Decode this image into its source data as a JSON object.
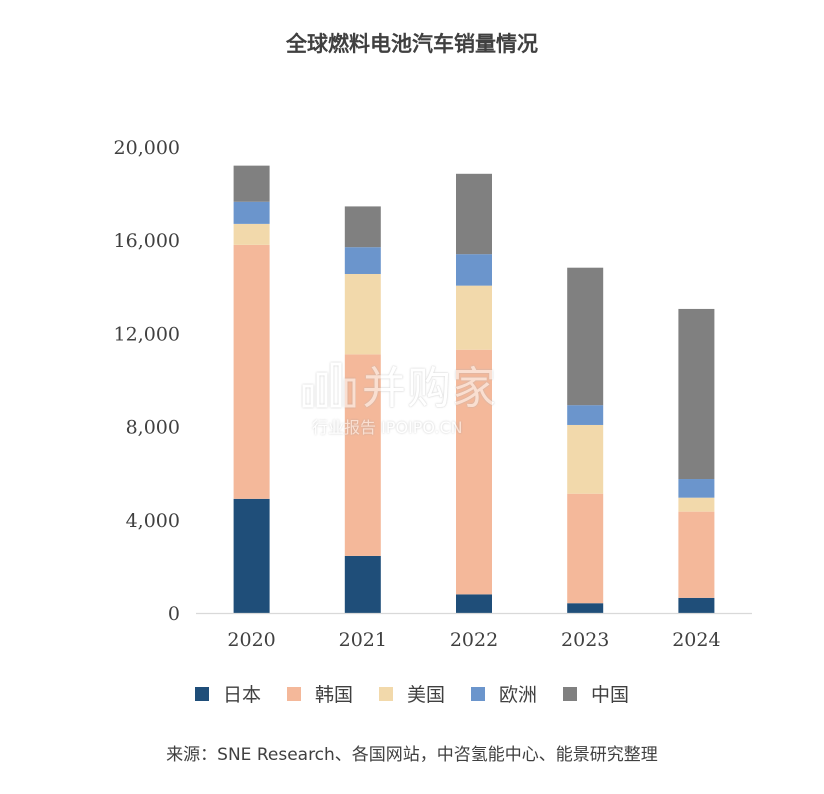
{
  "chart_data": {
    "type": "bar",
    "stacked": true,
    "title": "全球燃料电池汽车销量情况",
    "categories": [
      "2020",
      "2021",
      "2022",
      "2023",
      "2024"
    ],
    "series": [
      {
        "name": "日本",
        "color": "#1f4e79",
        "values": [
          4900,
          2450,
          800,
          420,
          650
        ]
      },
      {
        "name": "韩国",
        "color": "#f4b89a",
        "values": [
          10900,
          8650,
          10500,
          4700,
          3700
        ]
      },
      {
        "name": "美国",
        "color": "#f2d9ab",
        "values": [
          900,
          3450,
          2750,
          2950,
          600
        ]
      },
      {
        "name": "欧洲",
        "color": "#6b95cc",
        "values": [
          950,
          1150,
          1350,
          850,
          800
        ]
      },
      {
        "name": "中国",
        "color": "#808080",
        "values": [
          1550,
          1750,
          3450,
          5900,
          7300
        ]
      }
    ],
    "ylim": [
      0,
      20000
    ],
    "yticks": [
      "0",
      "4,000",
      "8,000",
      "12,000",
      "16,000",
      "20,000"
    ],
    "legend_position": "bottom",
    "grid": false
  },
  "source": "来源：SNE Research、各国网站，中咨氢能中心、能景研究整理",
  "watermark": {
    "main": "并购家",
    "sub": "行业报告 IPOIPO.CN"
  }
}
